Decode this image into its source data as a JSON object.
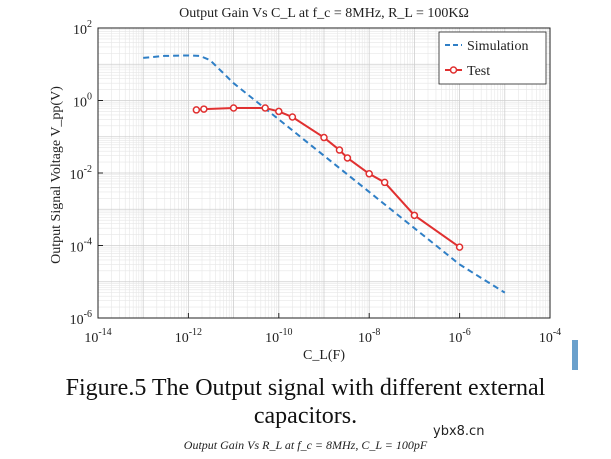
{
  "chart_data": {
    "type": "line",
    "title": "Output Gain Vs C_L at f_c = 8MHz, R_L = 100KΩ",
    "xlabel": "C_L(F)",
    "ylabel": "Output Signal Voltage V_pp(V)",
    "xscale": "log",
    "yscale": "log",
    "xlim_exp": [
      -14,
      -4
    ],
    "ylim_exp": [
      -6,
      2
    ],
    "x_tick_labels": [
      "10^-14",
      "10^-12",
      "10^-10",
      "10^-8",
      "10^-6",
      "10^-4"
    ],
    "y_tick_labels": [
      "10^-6",
      "10^-4",
      "10^-2",
      "10^0",
      "10^2"
    ],
    "grid": true,
    "legend_position": "top-right",
    "series": [
      {
        "name": "Simulation",
        "style": "dashed",
        "color": "#2f7fc6",
        "x": [
          1e-13,
          3e-13,
          1e-12,
          1.8e-12,
          3e-12,
          1e-11,
          1e-10,
          1e-09,
          1e-08,
          1e-07,
          1e-06,
          1e-05
        ],
        "y": [
          15,
          17,
          17.5,
          17,
          13,
          3,
          0.3,
          0.03,
          0.003,
          0.0003,
          3e-05,
          5e-06
        ]
      },
      {
        "name": "Test",
        "style": "solid-markers",
        "color": "#e03030",
        "x": [
          1.5e-12,
          2.2e-12,
          1e-11,
          5e-11,
          1e-10,
          2e-10,
          1e-09,
          2.2e-09,
          3.3e-09,
          1e-08,
          2.2e-08,
          1e-07,
          1e-06
        ],
        "y": [
          0.55,
          0.58,
          0.62,
          0.62,
          0.5,
          0.35,
          0.095,
          0.043,
          0.026,
          0.0095,
          0.0055,
          0.00068,
          9e-05
        ]
      }
    ]
  },
  "caption": {
    "line1": "Figure.5 The Output signal with different external",
    "line2": "capacitors."
  },
  "watermark": "ybx8.cn",
  "next_figure_title": "Output Gain Vs R_L at f_c = 8MHz, C_L = 100pF"
}
